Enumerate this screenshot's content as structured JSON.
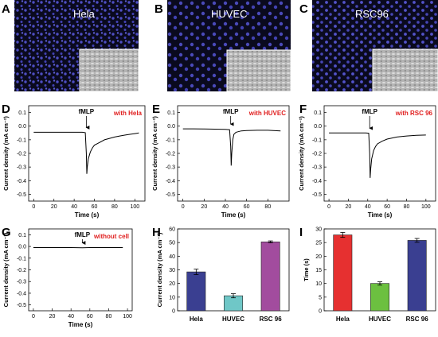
{
  "figure": {
    "panels": [
      "A",
      "B",
      "C",
      "D",
      "E",
      "F",
      "G",
      "H",
      "I"
    ],
    "micrographs": [
      {
        "letter": "A",
        "label": "Hela"
      },
      {
        "letter": "B",
        "label": "HUVEC"
      },
      {
        "letter": "C",
        "label": "RSC96"
      }
    ]
  },
  "colors": {
    "annotation": "#e02020",
    "nuclei": "#5a5ae0",
    "hela_bar": "#3a3f91",
    "huvec_bar": "#6fc7c7",
    "rsc96_bar": "#a24c9e",
    "red_bar": "#e63030",
    "green_bar": "#6cc040",
    "blue_bar": "#3a3f91"
  },
  "chart_data": [
    {
      "panel": "D",
      "type": "line",
      "xlabel": "Time (s)",
      "ylabel": "Current density (mA cm⁻²)",
      "xlim": [
        -5,
        110
      ],
      "ylim": [
        -0.55,
        0.15
      ],
      "xticks": [
        0,
        20,
        40,
        60,
        80,
        100
      ],
      "yticks": [
        0.1,
        0.0,
        -0.1,
        -0.2,
        -0.3,
        -0.4,
        -0.5
      ],
      "annotation": "with Hela",
      "arrow_label": "fMLP",
      "arrow_x": 52,
      "series": [
        {
          "x": [
            0,
            10,
            20,
            30,
            40,
            48,
            51,
            52,
            52.5,
            53,
            54,
            56,
            58,
            60,
            65,
            70,
            75,
            80,
            85,
            90,
            95,
            100,
            104
          ],
          "y": [
            -0.045,
            -0.045,
            -0.045,
            -0.045,
            -0.045,
            -0.045,
            -0.048,
            -0.2,
            -0.35,
            -0.3,
            -0.24,
            -0.19,
            -0.16,
            -0.14,
            -0.12,
            -0.1,
            -0.09,
            -0.08,
            -0.072,
            -0.066,
            -0.06,
            -0.055,
            -0.05
          ]
        }
      ]
    },
    {
      "panel": "E",
      "type": "line",
      "xlabel": "Time (s)",
      "ylabel": "Current density (mA cm⁻²)",
      "xlim": [
        -5,
        100
      ],
      "ylim": [
        -0.55,
        0.15
      ],
      "xticks": [
        0,
        20,
        40,
        60,
        80
      ],
      "yticks": [
        0.1,
        0.0,
        -0.1,
        -0.2,
        -0.3,
        -0.4,
        -0.5
      ],
      "annotation": "with HUVEC",
      "arrow_label": "fMLP",
      "arrow_x": 45,
      "series": [
        {
          "x": [
            0,
            10,
            20,
            30,
            40,
            44,
            45,
            45.5,
            46,
            47,
            48,
            50,
            55,
            60,
            70,
            80,
            92
          ],
          "y": [
            -0.02,
            -0.02,
            -0.021,
            -0.022,
            -0.024,
            -0.026,
            -0.15,
            -0.29,
            -0.2,
            -0.1,
            -0.06,
            -0.045,
            -0.035,
            -0.032,
            -0.03,
            -0.03,
            -0.035
          ]
        }
      ]
    },
    {
      "panel": "F",
      "type": "line",
      "xlabel": "Time (s)",
      "ylabel": "Current density (mA cm⁻²)",
      "xlim": [
        -5,
        110
      ],
      "ylim": [
        -0.55,
        0.15
      ],
      "xticks": [
        0,
        20,
        40,
        60,
        80,
        100
      ],
      "yticks": [
        0.1,
        0.0,
        -0.1,
        -0.2,
        -0.3,
        -0.4,
        -0.5
      ],
      "annotation": "with RSC 96",
      "arrow_label": "fMLP",
      "arrow_x": 42,
      "series": [
        {
          "x": [
            0,
            10,
            20,
            30,
            38,
            41,
            42,
            42.5,
            43,
            44,
            46,
            48,
            50,
            55,
            60,
            70,
            80,
            90,
            100
          ],
          "y": [
            -0.05,
            -0.05,
            -0.05,
            -0.05,
            -0.05,
            -0.052,
            -0.2,
            -0.38,
            -0.32,
            -0.24,
            -0.18,
            -0.15,
            -0.13,
            -0.11,
            -0.095,
            -0.08,
            -0.072,
            -0.067,
            -0.065
          ]
        }
      ]
    },
    {
      "panel": "G",
      "type": "line",
      "xlabel": "Time (s)",
      "ylabel": "Current density (mA cm⁻²)",
      "xlim": [
        -5,
        105
      ],
      "ylim": [
        -0.55,
        0.15
      ],
      "xticks": [
        0,
        20,
        40,
        60,
        80,
        100
      ],
      "yticks": [
        0.1,
        0.0,
        -0.1,
        -0.2,
        -0.3,
        -0.4,
        -0.5
      ],
      "annotation": "without cell",
      "arrow_label": "fMLP",
      "arrow_x": 52,
      "series": [
        {
          "x": [
            0,
            20,
            40,
            52,
            60,
            80,
            95
          ],
          "y": [
            -0.01,
            -0.01,
            -0.01,
            -0.012,
            -0.01,
            -0.01,
            -0.01
          ]
        }
      ]
    },
    {
      "panel": "H",
      "type": "bar",
      "ylabel": "Current density (mA cm⁻²)",
      "categories": [
        "Hela",
        "HUVEC",
        "RSC 96"
      ],
      "values": [
        28.5,
        11,
        50.5
      ],
      "errors": [
        2,
        1.5,
        0.7
      ],
      "ylim": [
        0,
        60
      ],
      "yticks": [
        0,
        10,
        20,
        30,
        40,
        50,
        60
      ]
    },
    {
      "panel": "I",
      "type": "bar",
      "ylabel": "Time (s)",
      "categories": [
        "Hela",
        "HUVEC",
        "RSC 96"
      ],
      "values": [
        27.8,
        10,
        25.8
      ],
      "errors": [
        0.9,
        0.6,
        0.7
      ],
      "ylim": [
        0,
        30
      ],
      "yticks": [
        0,
        5,
        10,
        15,
        20,
        25,
        30
      ]
    }
  ]
}
